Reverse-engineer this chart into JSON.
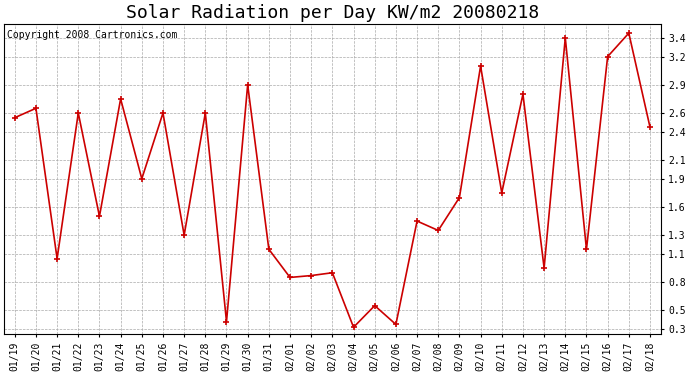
{
  "title": "Solar Radiation per Day KW/m2 20080218",
  "copyright": "Copyright 2008 Cartronics.com",
  "dates": [
    "01/19",
    "01/20",
    "01/21",
    "01/22",
    "01/23",
    "01/24",
    "01/25",
    "01/26",
    "01/27",
    "01/28",
    "01/29",
    "01/30",
    "01/31",
    "02/01",
    "02/02",
    "02/03",
    "02/04",
    "02/05",
    "02/06",
    "02/07",
    "02/08",
    "02/09",
    "02/10",
    "02/11",
    "02/12",
    "02/13",
    "02/14",
    "02/15",
    "02/16",
    "02/17",
    "02/18"
  ],
  "values": [
    2.55,
    2.65,
    1.05,
    2.6,
    1.5,
    2.75,
    1.9,
    2.6,
    1.3,
    2.6,
    0.38,
    2.9,
    1.15,
    0.85,
    0.87,
    0.9,
    0.32,
    0.55,
    0.35,
    1.45,
    1.35,
    1.7,
    3.1,
    1.75,
    2.8,
    0.95,
    3.4,
    1.15,
    3.2,
    3.45,
    2.45
  ],
  "line_color": "#cc0000",
  "marker": "+",
  "marker_color": "#cc0000",
  "marker_size": 5,
  "marker_linewidth": 1.2,
  "line_width": 1.2,
  "bg_color": "#ffffff",
  "grid_color": "#aaaaaa",
  "ylim": [
    0.25,
    3.55
  ],
  "yticks": [
    0.3,
    0.5,
    0.8,
    1.1,
    1.3,
    1.6,
    1.9,
    2.1,
    2.4,
    2.6,
    2.9,
    3.2,
    3.4
  ],
  "title_fontsize": 13,
  "copyright_fontsize": 7,
  "tick_fontsize": 7,
  "figwidth": 6.9,
  "figheight": 3.75,
  "dpi": 100
}
